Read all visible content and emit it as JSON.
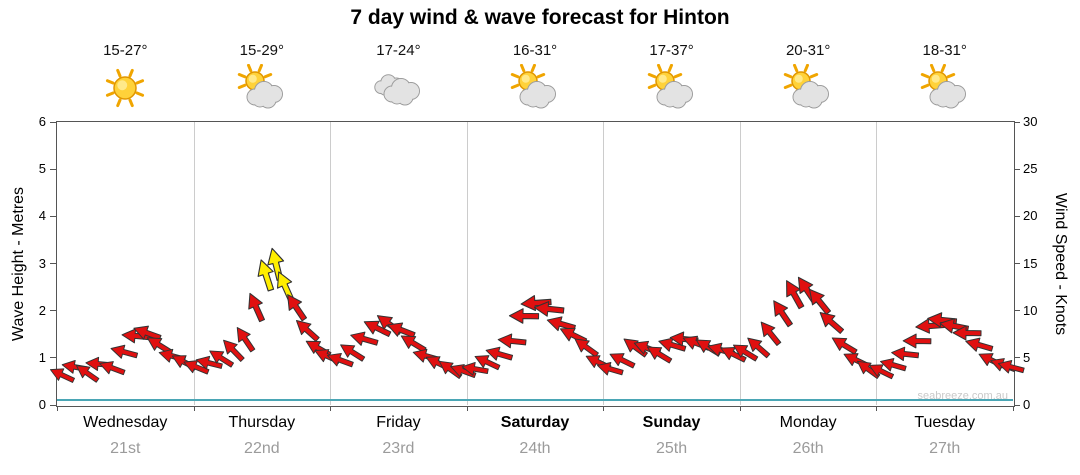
{
  "title": "7 day wind & wave forecast for Hinton",
  "watermark": "seabreeze.com.au",
  "days": [
    {
      "name": "Wednesday",
      "date": "21st",
      "temp": "15-27°",
      "icon": "sunny",
      "bold": false
    },
    {
      "name": "Thursday",
      "date": "22nd",
      "temp": "15-29°",
      "icon": "partly-cloudy",
      "bold": false
    },
    {
      "name": "Friday",
      "date": "23rd",
      "temp": "17-24°",
      "icon": "cloudy",
      "bold": false
    },
    {
      "name": "Saturday",
      "date": "24th",
      "temp": "16-31°",
      "icon": "partly-cloudy",
      "bold": true
    },
    {
      "name": "Sunday",
      "date": "25th",
      "temp": "17-37°",
      "icon": "partly-cloudy",
      "bold": true
    },
    {
      "name": "Monday",
      "date": "26th",
      "temp": "20-31°",
      "icon": "partly-cloudy",
      "bold": false
    },
    {
      "name": "Tuesday",
      "date": "27th",
      "temp": "18-31°",
      "icon": "partly-cloudy",
      "bold": false
    }
  ],
  "axes": {
    "left_label": "Wave Height - Metres",
    "left_ticks": [
      0,
      1,
      2,
      3,
      4,
      5,
      6
    ],
    "left_max": 6,
    "right_label": "Wind Speed - Knots",
    "right_ticks": [
      0,
      5,
      10,
      15,
      20,
      25,
      30
    ],
    "right_max": 30
  },
  "chart_data": {
    "type": "wind-arrows",
    "title": "7 day wind & wave forecast for Hinton",
    "x_unit": "days",
    "x_range": [
      0,
      7
    ],
    "y_left": {
      "label": "Wave Height - Metres",
      "range": [
        0,
        6
      ]
    },
    "y_right": {
      "label": "Wind Speed - Knots",
      "range": [
        0,
        30
      ]
    },
    "grid": "vertical line at each day boundary",
    "wave_height_m": 0.1,
    "wave_line_color": "#4aa6b5",
    "arrow_colors": {
      "red": "#e01010",
      "yellow": "#ffee00",
      "outline": "#333333"
    },
    "dir_deg_convention": "clockwise, 0 = pointing right",
    "points": [
      {
        "x": 0.04,
        "k": 3.2,
        "d": 205
      },
      {
        "x": 0.13,
        "k": 4.0,
        "d": 190
      },
      {
        "x": 0.22,
        "k": 3.4,
        "d": 215
      },
      {
        "x": 0.31,
        "k": 4.3,
        "d": 185
      },
      {
        "x": 0.4,
        "k": 3.9,
        "d": 200
      },
      {
        "x": 0.49,
        "k": 5.6,
        "d": 195
      },
      {
        "x": 0.575,
        "k": 7.3,
        "d": 185
      },
      {
        "x": 0.66,
        "k": 7.6,
        "d": 200
      },
      {
        "x": 0.75,
        "k": 6.4,
        "d": 212
      },
      {
        "x": 0.84,
        "k": 5.2,
        "d": 195
      },
      {
        "x": 0.93,
        "k": 4.6,
        "d": 207
      },
      {
        "x": 1.02,
        "k": 4.0,
        "d": 202
      },
      {
        "x": 1.11,
        "k": 4.4,
        "d": 194
      },
      {
        "x": 1.2,
        "k": 5.0,
        "d": 212
      },
      {
        "x": 1.29,
        "k": 5.8,
        "d": 226
      },
      {
        "x": 1.38,
        "k": 7.0,
        "d": 236
      },
      {
        "x": 1.46,
        "k": 10.4,
        "d": 246
      },
      {
        "x": 1.53,
        "k": 13.8,
        "d": 252,
        "c": "y"
      },
      {
        "x": 1.6,
        "k": 15.0,
        "d": 256,
        "c": "y"
      },
      {
        "x": 1.67,
        "k": 12.6,
        "d": 246,
        "c": "y"
      },
      {
        "x": 1.75,
        "k": 10.4,
        "d": 236
      },
      {
        "x": 1.83,
        "k": 8.0,
        "d": 222
      },
      {
        "x": 1.91,
        "k": 6.0,
        "d": 210
      },
      {
        "x": 1.98,
        "k": 5.2,
        "d": 204
      },
      {
        "x": 2.07,
        "k": 4.8,
        "d": 200
      },
      {
        "x": 2.16,
        "k": 5.6,
        "d": 212
      },
      {
        "x": 2.25,
        "k": 7.0,
        "d": 196
      },
      {
        "x": 2.34,
        "k": 8.2,
        "d": 206
      },
      {
        "x": 2.43,
        "k": 8.6,
        "d": 216
      },
      {
        "x": 2.52,
        "k": 8.0,
        "d": 201
      },
      {
        "x": 2.61,
        "k": 6.6,
        "d": 211
      },
      {
        "x": 2.7,
        "k": 5.2,
        "d": 196
      },
      {
        "x": 2.79,
        "k": 4.4,
        "d": 206
      },
      {
        "x": 2.88,
        "k": 3.8,
        "d": 216
      },
      {
        "x": 2.97,
        "k": 3.6,
        "d": 200
      },
      {
        "x": 3.06,
        "k": 3.8,
        "d": 190
      },
      {
        "x": 3.15,
        "k": 4.6,
        "d": 205
      },
      {
        "x": 3.24,
        "k": 5.4,
        "d": 196
      },
      {
        "x": 3.33,
        "k": 6.8,
        "d": 186
      },
      {
        "x": 3.42,
        "k": 9.4,
        "d": 181
      },
      {
        "x": 3.51,
        "k": 10.8,
        "d": 176
      },
      {
        "x": 3.6,
        "k": 10.2,
        "d": 186
      },
      {
        "x": 3.69,
        "k": 8.6,
        "d": 196
      },
      {
        "x": 3.78,
        "k": 7.4,
        "d": 206
      },
      {
        "x": 3.87,
        "k": 6.2,
        "d": 216
      },
      {
        "x": 3.96,
        "k": 4.6,
        "d": 206
      },
      {
        "x": 4.05,
        "k": 3.8,
        "d": 196
      },
      {
        "x": 4.14,
        "k": 4.8,
        "d": 206
      },
      {
        "x": 4.23,
        "k": 6.2,
        "d": 216
      },
      {
        "x": 4.32,
        "k": 6.0,
        "d": 201
      },
      {
        "x": 4.41,
        "k": 5.4,
        "d": 211
      },
      {
        "x": 4.5,
        "k": 6.4,
        "d": 196
      },
      {
        "x": 4.59,
        "k": 7.0,
        "d": 186
      },
      {
        "x": 4.68,
        "k": 6.6,
        "d": 201
      },
      {
        "x": 4.77,
        "k": 6.2,
        "d": 211
      },
      {
        "x": 4.86,
        "k": 5.8,
        "d": 196
      },
      {
        "x": 4.95,
        "k": 5.4,
        "d": 206
      },
      {
        "x": 5.04,
        "k": 5.6,
        "d": 211
      },
      {
        "x": 5.13,
        "k": 6.2,
        "d": 221
      },
      {
        "x": 5.22,
        "k": 7.6,
        "d": 231
      },
      {
        "x": 5.31,
        "k": 9.8,
        "d": 236
      },
      {
        "x": 5.4,
        "k": 11.8,
        "d": 241
      },
      {
        "x": 5.49,
        "k": 12.2,
        "d": 236
      },
      {
        "x": 5.58,
        "k": 11.0,
        "d": 231
      },
      {
        "x": 5.67,
        "k": 8.8,
        "d": 221
      },
      {
        "x": 5.76,
        "k": 6.4,
        "d": 211
      },
      {
        "x": 5.85,
        "k": 4.8,
        "d": 206
      },
      {
        "x": 5.94,
        "k": 3.8,
        "d": 216
      },
      {
        "x": 6.03,
        "k": 3.6,
        "d": 206
      },
      {
        "x": 6.12,
        "k": 4.2,
        "d": 196
      },
      {
        "x": 6.21,
        "k": 5.4,
        "d": 186
      },
      {
        "x": 6.3,
        "k": 6.8,
        "d": 181
      },
      {
        "x": 6.39,
        "k": 8.4,
        "d": 176
      },
      {
        "x": 6.48,
        "k": 9.0,
        "d": 186
      },
      {
        "x": 6.57,
        "k": 8.4,
        "d": 191
      },
      {
        "x": 6.66,
        "k": 7.6,
        "d": 181
      },
      {
        "x": 6.75,
        "k": 6.4,
        "d": 196
      },
      {
        "x": 6.84,
        "k": 4.8,
        "d": 206
      },
      {
        "x": 6.93,
        "k": 4.2,
        "d": 200
      },
      {
        "x": 6.985,
        "k": 4.0,
        "d": 195
      }
    ]
  }
}
